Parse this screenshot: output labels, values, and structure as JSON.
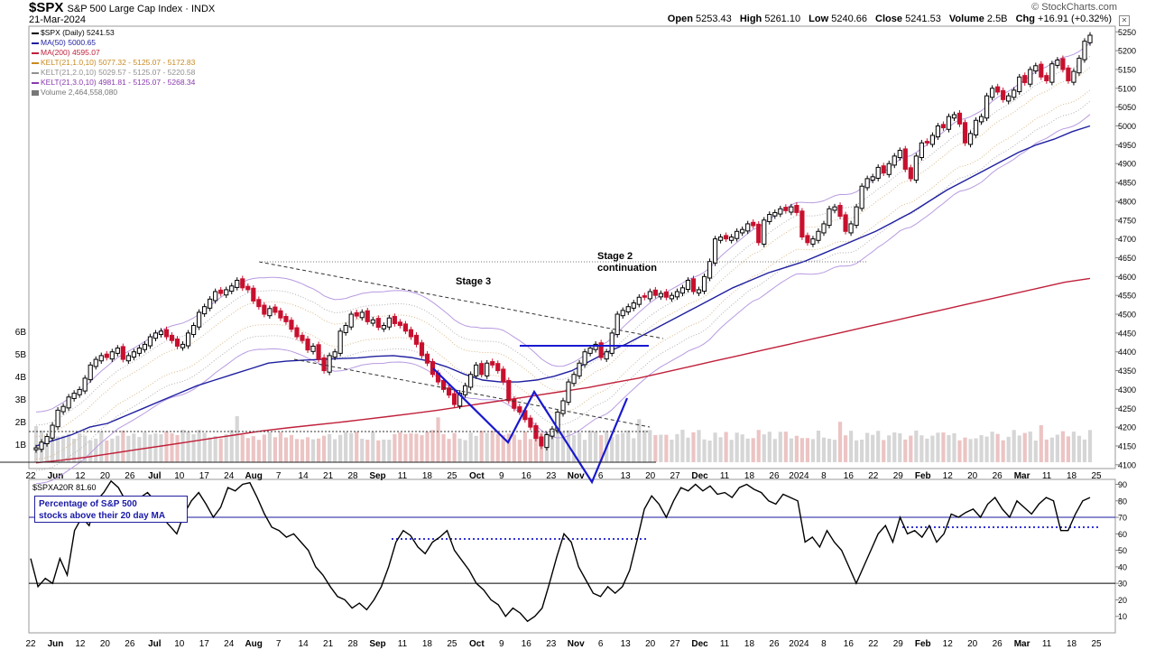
{
  "header": {
    "symbol": "$SPX",
    "name": "S&P 500 Large Cap Index",
    "exchange": "INDX",
    "date": "21-Mar-2024",
    "brand": "© StockCharts.com",
    "open_label": "Open",
    "open": "5253.43",
    "high_label": "High",
    "high": "5261.10",
    "low_label": "Low",
    "low": "5240.66",
    "close_label": "Close",
    "close": "5241.53",
    "volume_label": "Volume",
    "volume": "2.5B",
    "chg_label": "Chg",
    "chg": "+16.91 (+0.32%)"
  },
  "legend": [
    {
      "text": "$SPX (Daily) 5241.53",
      "color": "#000000"
    },
    {
      "text": "MA(50) 5000.65",
      "color": "#1f1fa0"
    },
    {
      "text": "MA(200) 4595.07",
      "color": "#c0203a"
    },
    {
      "text": "KELT(21,1.0,10) 5077.32 - 5125.07 - 5172.83",
      "color": "#c98a20"
    },
    {
      "text": "KELT(21,2.0,10) 5029.57 - 5125.07 - 5220.58",
      "color": "#909090"
    },
    {
      "text": "KELT(21,3.0,10) 4981.81 - 5125.07 - 5268.34",
      "color": "#8a3ab0"
    },
    {
      "text": "Volume 2,464,558,080",
      "color": "#777777"
    }
  ],
  "annotations": {
    "stage3": "Stage 3",
    "stage2_line1": "Stage 2",
    "stage2_line2": "continuation"
  },
  "lower": {
    "label": "$SPXA20R 81.60",
    "box_line1": "Percentage of S&P 500",
    "box_line2": "stocks above their 20 day MA"
  },
  "colors": {
    "up": "#000000",
    "down": "#c8102e",
    "ma50": "#1f1fa0",
    "ma200": "#c0203a",
    "kelt1": "#d9b98a",
    "kelt2": "#b0b0b0",
    "kelt3": "#b89be0",
    "volume": "#d6d6d6",
    "volume_down": "#ecc4c4",
    "pattern": "#1818d0"
  },
  "chart_data": [
    {
      "type": "candlestick",
      "title": "$SPX S&P 500 Large Cap Index",
      "ylim": [
        4090,
        5265
      ],
      "y_ticks": [
        4100,
        4150,
        4200,
        4250,
        4300,
        4350,
        4400,
        4450,
        4500,
        4550,
        4600,
        4650,
        4700,
        4750,
        4800,
        4850,
        4900,
        4950,
        5000,
        5050,
        5100,
        5150,
        5200,
        5250
      ],
      "volume_ticks": [
        "1B",
        "2B",
        "3B",
        "4B",
        "5B",
        "6B"
      ],
      "x_ticks": [
        "22",
        "Jun",
        "12",
        "20",
        "26",
        "Jul",
        "10",
        "17",
        "24",
        "Aug",
        "7",
        "14",
        "21",
        "28",
        "Sep",
        "11",
        "18",
        "25",
        "Oct",
        "9",
        "16",
        "23",
        "Nov",
        "6",
        "13",
        "20",
        "27",
        "Dec",
        "11",
        "18",
        "26",
        "2024",
        "8",
        "16",
        "22",
        "29",
        "Feb",
        "12",
        "20",
        "26",
        "Mar",
        "11",
        "18",
        "25"
      ],
      "close_series": [
        4145,
        4160,
        4175,
        4205,
        4245,
        4255,
        4280,
        4290,
        4300,
        4330,
        4365,
        4380,
        4390,
        4385,
        4400,
        4410,
        4380,
        4390,
        4400,
        4410,
        4420,
        4440,
        4450,
        4455,
        4440,
        4430,
        4415,
        4420,
        4450,
        4470,
        4505,
        4520,
        4540,
        4560,
        4555,
        4565,
        4575,
        4590,
        4570,
        4565,
        4535,
        4520,
        4500,
        4515,
        4505,
        4490,
        4480,
        4460,
        4440,
        4430,
        4405,
        4415,
        4380,
        4350,
        4390,
        4400,
        4455,
        4470,
        4500,
        4495,
        4505,
        4480,
        4485,
        4465,
        4470,
        4490,
        4475,
        4470,
        4455,
        4440,
        4420,
        4390,
        4370,
        4340,
        4320,
        4300,
        4285,
        4260,
        4290,
        4310,
        4340,
        4365,
        4340,
        4370,
        4365,
        4350,
        4320,
        4270,
        4250,
        4240,
        4220,
        4200,
        4170,
        4150,
        4180,
        4195,
        4240,
        4270,
        4320,
        4340,
        4370,
        4400,
        4410,
        4420,
        4385,
        4400,
        4450,
        4500,
        4510,
        4520,
        4530,
        4545,
        4545,
        4560,
        4550,
        4555,
        4545,
        4550,
        4560,
        4570,
        4590,
        4560,
        4565,
        4600,
        4640,
        4700,
        4705,
        4700,
        4705,
        4720,
        4725,
        4740,
        4735,
        4690,
        4750,
        4765,
        4770,
        4780,
        4775,
        4785,
        4770,
        4705,
        4690,
        4700,
        4720,
        4740,
        4780,
        4785,
        4760,
        4720,
        4740,
        4785,
        4840,
        4860,
        4865,
        4890,
        4875,
        4900,
        4920,
        4935,
        4885,
        4860,
        4920,
        4955,
        4955,
        4975,
        5000,
        4995,
        5025,
        5030,
        5005,
        4955,
        4980,
        5015,
        5025,
        5080,
        5100,
        5090,
        5070,
        5080,
        5095,
        5130,
        5115,
        5150,
        5160,
        5130,
        5120,
        5165,
        5175,
        5150,
        5120,
        5145,
        5180,
        5225,
        5241
      ],
      "ma50_series": [
        4150,
        4165,
        4180,
        4200,
        4210,
        4230,
        4250,
        4270,
        4290,
        4310,
        4325,
        4340,
        4355,
        4370,
        4375,
        4378,
        4380,
        4382,
        4384,
        4388,
        4390,
        4385,
        4375,
        4360,
        4340,
        4325,
        4320,
        4320,
        4325,
        4335,
        4350,
        4375,
        4400,
        4420,
        4445,
        4470,
        4495,
        4520,
        4545,
        4570,
        4590,
        4610,
        4625,
        4640,
        4660,
        4680,
        4700,
        4720,
        4745,
        4770,
        4800,
        4830,
        4855,
        4880,
        4905,
        4930,
        4950,
        4965,
        4985,
        5000
      ],
      "ma200_series": [
        4105,
        4112,
        4120,
        4130,
        4140,
        4150,
        4160,
        4170,
        4180,
        4190,
        4198,
        4205,
        4212,
        4220,
        4228,
        4236,
        4245,
        4255,
        4265,
        4275,
        4285,
        4295,
        4305,
        4318,
        4330,
        4345,
        4360,
        4375,
        4390,
        4405,
        4420,
        4435,
        4450,
        4465,
        4480,
        4495,
        4510,
        4525,
        4540,
        4555,
        4570,
        4585,
        4595
      ]
    },
    {
      "type": "line",
      "title": "$SPXA20R",
      "ylim": [
        0,
        93
      ],
      "y_ticks": [
        10,
        20,
        30,
        40,
        50,
        60,
        70,
        80,
        90
      ],
      "hlines": [
        70,
        30
      ],
      "values": [
        45,
        28,
        33,
        30,
        45,
        35,
        62,
        70,
        65,
        80,
        85,
        92,
        88,
        80,
        75,
        82,
        85,
        80,
        70,
        65,
        60,
        72,
        80,
        85,
        78,
        70,
        76,
        88,
        86,
        90,
        91,
        82,
        72,
        64,
        62,
        58,
        60,
        55,
        50,
        40,
        35,
        28,
        22,
        20,
        15,
        18,
        14,
        20,
        28,
        40,
        55,
        62,
        59,
        52,
        48,
        55,
        58,
        62,
        50,
        44,
        38,
        30,
        26,
        20,
        17,
        10,
        15,
        12,
        7,
        10,
        15,
        30,
        46,
        60,
        55,
        40,
        32,
        24,
        22,
        28,
        24,
        28,
        38,
        56,
        75,
        83,
        78,
        70,
        80,
        88,
        86,
        90,
        86,
        89,
        84,
        85,
        82,
        88,
        90,
        87,
        85,
        80,
        78,
        84,
        82,
        80,
        55,
        58,
        52,
        62,
        55,
        50,
        40,
        30,
        40,
        50,
        60,
        65,
        55,
        70,
        60,
        62,
        58,
        65,
        55,
        60,
        72,
        70,
        73,
        75,
        70,
        78,
        82,
        75,
        70,
        80,
        76,
        72,
        78,
        82,
        80,
        62,
        62,
        72,
        80,
        82
      ]
    }
  ]
}
